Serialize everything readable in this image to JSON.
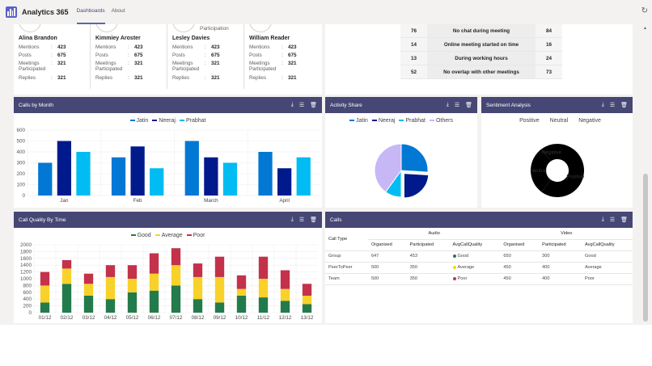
{
  "header": {
    "app_title": "Analytics 365",
    "tabs": [
      {
        "label": "Dashboards",
        "active": true
      },
      {
        "label": "About",
        "active": false
      }
    ],
    "refresh_icon": "refresh-icon"
  },
  "colors": {
    "panel_header": "#464775",
    "jatin": "#0078d4",
    "neeraj": "#001a8c",
    "prabhat": "#00bcf2",
    "others": "#c8b7f5",
    "good": "#237b4b",
    "average": "#f8d22a",
    "poor": "#c4314b"
  },
  "people": {
    "subtitles": [
      "",
      "",
      "Participation",
      ""
    ],
    "labels": {
      "mentions": "Mentions",
      "posts": "Posts",
      "meetings": "Meetings Participated",
      "replies": "Replies"
    },
    "items": [
      {
        "name": "Alina Brandon",
        "mentions": "423",
        "posts": "675",
        "meetings": "321",
        "replies": "321"
      },
      {
        "name": "Kimmiey Aroster",
        "mentions": "423",
        "posts": "675",
        "meetings": "321",
        "replies": "321"
      },
      {
        "name": "Lesley Davies",
        "mentions": "423",
        "posts": "675",
        "meetings": "321",
        "replies": "321"
      },
      {
        "name": "William Reader",
        "mentions": "423",
        "posts": "675",
        "meetings": "321",
        "replies": "321"
      }
    ]
  },
  "meeting_table": [
    {
      "left": "76",
      "label": "No chat during meeting",
      "right": "84"
    },
    {
      "left": "14",
      "label": "Online meeting started on time",
      "right": "16"
    },
    {
      "left": "13",
      "label": "During working hours",
      "right": "24"
    },
    {
      "left": "52",
      "label": "No overlap with other meetings",
      "right": "73"
    }
  ],
  "panel_icons": [
    "download-icon",
    "filter-icon",
    "delete-icon"
  ],
  "panels": {
    "calls_by_month": "Calls by Month",
    "activity_share": "Activity Share",
    "sentiment": "Sentiment Analysis",
    "call_quality": "Call Quality By Time",
    "calls": "Calls"
  },
  "chart_data": [
    {
      "type": "bar",
      "categories": [
        "Jan",
        "Feb",
        "March",
        "April"
      ],
      "series": [
        {
          "name": "Jatin",
          "values": [
            300,
            350,
            500,
            400
          ]
        },
        {
          "name": "Neeraj",
          "values": [
            500,
            450,
            350,
            250
          ]
        },
        {
          "name": "Prabhat",
          "values": [
            400,
            250,
            300,
            350
          ]
        }
      ],
      "ylim": [
        0,
        600
      ],
      "yticks": [
        0,
        100,
        200,
        300,
        400,
        500,
        600
      ],
      "legend": "top",
      "grid": true
    },
    {
      "type": "pie",
      "series": [
        {
          "name": "Jatin",
          "value": 26
        },
        {
          "name": "Neeraj",
          "value": 24,
          "exploded": true
        },
        {
          "name": "Prabhat",
          "value": 10
        },
        {
          "name": "Others",
          "value": 40
        }
      ],
      "legend": "top"
    },
    {
      "type": "pie",
      "donut": true,
      "series": [
        {
          "name": "Positive",
          "value": 60
        },
        {
          "name": "Neutral",
          "value": 30
        },
        {
          "name": "Negative",
          "value": 10
        }
      ],
      "legend": "top",
      "data_labels": true
    },
    {
      "type": "bar",
      "stacked": true,
      "categories": [
        "01/12",
        "02/12",
        "03/12",
        "04/12",
        "05/12",
        "06/12",
        "07/12",
        "08/12",
        "09/12",
        "10/12",
        "11/12",
        "12/12",
        "13/12"
      ],
      "series": [
        {
          "name": "Good",
          "values": [
            300,
            850,
            500,
            400,
            600,
            650,
            800,
            400,
            300,
            500,
            450,
            350,
            250
          ]
        },
        {
          "name": "Average",
          "values": [
            500,
            450,
            350,
            650,
            400,
            500,
            600,
            650,
            750,
            200,
            550,
            350,
            250
          ]
        },
        {
          "name": "Poor",
          "values": [
            400,
            250,
            300,
            350,
            400,
            600,
            500,
            400,
            600,
            400,
            650,
            550,
            350
          ]
        }
      ],
      "ylim": [
        0,
        2000
      ],
      "yticks": [
        0,
        200,
        400,
        600,
        800,
        1000,
        1200,
        1400,
        1600,
        1800,
        2000
      ],
      "legend": "top",
      "grid": true
    }
  ],
  "calls_table": {
    "col_call_type": "Call Type",
    "group_audio": "Audio",
    "group_video": "Video",
    "sub_headers": [
      "Organised",
      "Participated",
      "AvgCallQuality",
      "Organised",
      "Participated",
      "AvgCallQuality"
    ],
    "rows": [
      {
        "type": "Group",
        "a_org": "647",
        "a_part": "453",
        "a_q": "Good",
        "a_color": "#237b4b",
        "v_org": "650",
        "v_part": "300",
        "v_q": "Good"
      },
      {
        "type": "PeerToPeer",
        "a_org": "500",
        "a_part": "350",
        "a_q": "Average",
        "a_color": "#f8d22a",
        "v_org": "450",
        "v_part": "400",
        "v_q": "Average"
      },
      {
        "type": "Team",
        "a_org": "500",
        "a_part": "350",
        "a_q": "Poor",
        "a_color": "#c4314b",
        "v_org": "450",
        "v_part": "400",
        "v_q": "Poor"
      }
    ]
  }
}
